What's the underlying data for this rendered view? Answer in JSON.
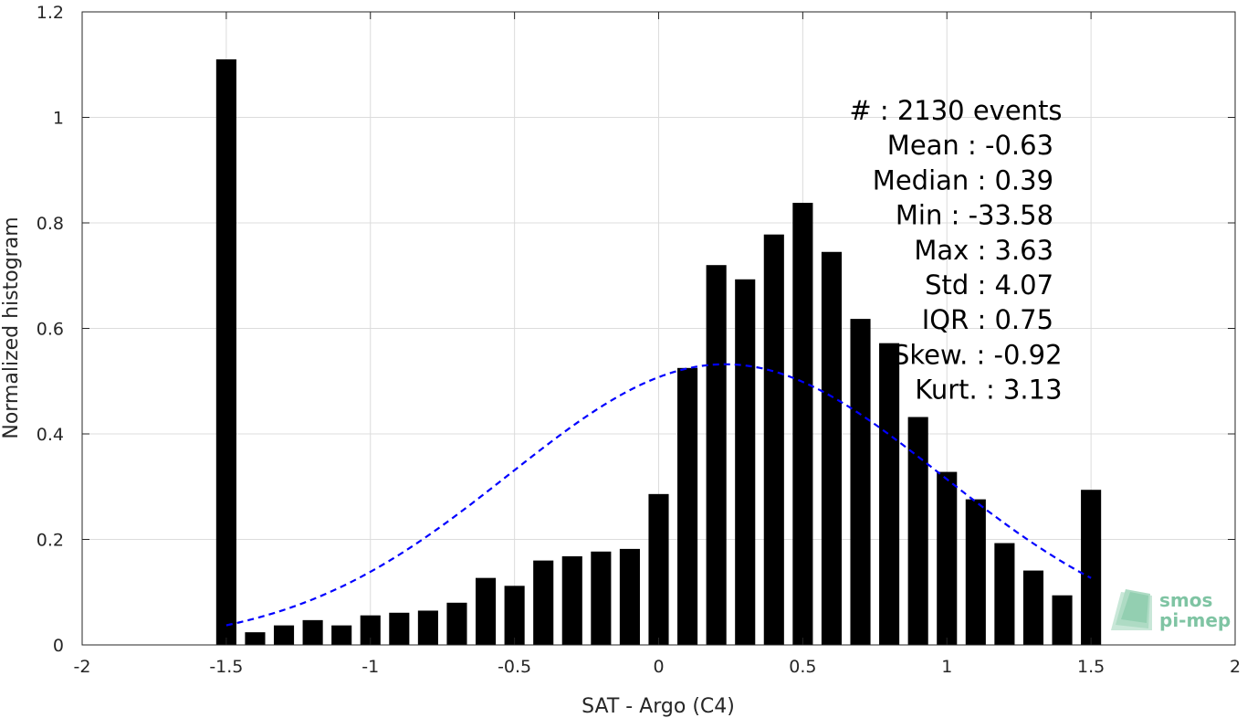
{
  "chart_data": {
    "type": "bar",
    "xlabel": "SAT - Argo (C4)",
    "ylabel": "Normalized histogram",
    "xlim": [
      -2,
      2
    ],
    "ylim": [
      0,
      1.2
    ],
    "xticks": [
      "-2",
      "-1.5",
      "-1",
      "-0.5",
      "0",
      "0.5",
      "1",
      "1.5",
      "2"
    ],
    "xtick_values": [
      -2,
      -1.5,
      -1,
      -0.5,
      0,
      0.5,
      1,
      1.5,
      2
    ],
    "yticks": [
      "0",
      "0.2",
      "0.4",
      "0.6",
      "0.8",
      "1",
      "1.2"
    ],
    "ytick_values": [
      0,
      0.2,
      0.4,
      0.6,
      0.8,
      1.0,
      1.2
    ],
    "grid": true,
    "bar_color": "#000000",
    "bar_width": 0.07,
    "x": [
      -1.5,
      -1.4,
      -1.3,
      -1.2,
      -1.1,
      -1.0,
      -0.9,
      -0.8,
      -0.7,
      -0.6,
      -0.5,
      -0.4,
      -0.3,
      -0.2,
      -0.1,
      0.0,
      0.1,
      0.2,
      0.3,
      0.4,
      0.5,
      0.6,
      0.7,
      0.8,
      0.9,
      1.0,
      1.1,
      1.2,
      1.3,
      1.4,
      1.5
    ],
    "values": [
      1.11,
      0.024,
      0.037,
      0.047,
      0.037,
      0.056,
      0.061,
      0.065,
      0.08,
      0.127,
      0.112,
      0.16,
      0.168,
      0.177,
      0.182,
      0.286,
      0.525,
      0.72,
      0.693,
      0.778,
      0.838,
      0.745,
      0.618,
      0.572,
      0.432,
      0.328,
      0.276,
      0.193,
      0.141,
      0.094,
      0.294
    ],
    "fit_curve": {
      "style": "dashed",
      "color": "#0000ff",
      "mean": 0.23,
      "std": 0.75,
      "peak": 0.532,
      "x_range": [
        -1.5,
        1.5
      ]
    }
  },
  "stats": [
    {
      "label": "#  : 2130 events",
      "anchor": "end",
      "x": 1.4
    },
    {
      "label": "Mean : -0.63",
      "anchor": "end",
      "x": 1.37
    },
    {
      "label": "Median : 0.39",
      "anchor": "end",
      "x": 1.37
    },
    {
      "label": "Min : -33.58",
      "anchor": "end",
      "x": 1.37
    },
    {
      "label": "Max : 3.63",
      "anchor": "end",
      "x": 1.37
    },
    {
      "label": "Std : 4.07",
      "anchor": "end",
      "x": 1.37
    },
    {
      "label": "IQR : 0.75",
      "anchor": "end",
      "x": 1.37
    },
    {
      "label": "Skew. : -0.92",
      "anchor": "end",
      "x": 1.4
    },
    {
      "label": "Kurt. : 3.13",
      "anchor": "end",
      "x": 1.4
    }
  ],
  "logo": {
    "line1": "smos",
    "line2": "pi-mep",
    "color": "#7fc4a3"
  }
}
